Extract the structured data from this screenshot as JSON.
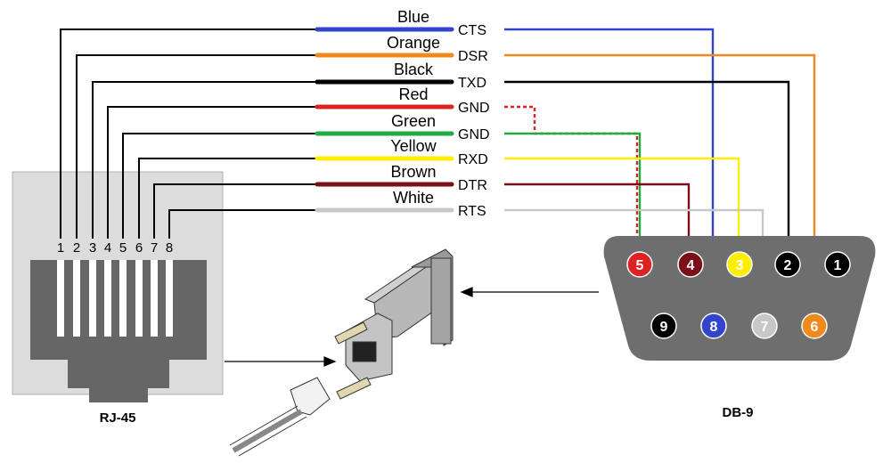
{
  "colors": {
    "blue": "#3344cc",
    "orange": "#f08a1c",
    "black": "#000000",
    "red": "#dd2222",
    "green": "#22aa44",
    "yellow": "#ffee00",
    "brown": "#7a0f18",
    "white": "#c8c8c8",
    "connector_body": "#6e6e6e",
    "rj45_panel": "#dcdcdc"
  },
  "rj45": {
    "label": "RJ-45",
    "pins": [
      "1",
      "2",
      "3",
      "4",
      "5",
      "6",
      "7",
      "8"
    ]
  },
  "db9": {
    "label": "DB-9",
    "pins": [
      "1",
      "2",
      "3",
      "4",
      "5",
      "6",
      "7",
      "8",
      "9"
    ]
  },
  "wires": [
    {
      "color_name": "Blue",
      "signal": "CTS",
      "rj45_pin": "1",
      "db9_pin": "8",
      "color": "#3344cc"
    },
    {
      "color_name": "Orange",
      "signal": "DSR",
      "rj45_pin": "2",
      "db9_pin": "6",
      "color": "#f08a1c"
    },
    {
      "color_name": "Black",
      "signal": "TXD",
      "rj45_pin": "3",
      "db9_pin": "2",
      "color": "#000000"
    },
    {
      "color_name": "Red",
      "signal": "GND",
      "rj45_pin": "4",
      "db9_pin": "5",
      "color": "#dd2222"
    },
    {
      "color_name": "Green",
      "signal": "GND",
      "rj45_pin": "5",
      "db9_pin": "5",
      "color": "#22aa44"
    },
    {
      "color_name": "Yellow",
      "signal": "RXD",
      "rj45_pin": "6",
      "db9_pin": "3",
      "color": "#ffee00"
    },
    {
      "color_name": "Brown",
      "signal": "DTR",
      "rj45_pin": "7",
      "db9_pin": "4",
      "color": "#7a0f18"
    },
    {
      "color_name": "White",
      "signal": "RTS",
      "rj45_pin": "8",
      "db9_pin": "7",
      "color": "#c8c8c8"
    }
  ]
}
